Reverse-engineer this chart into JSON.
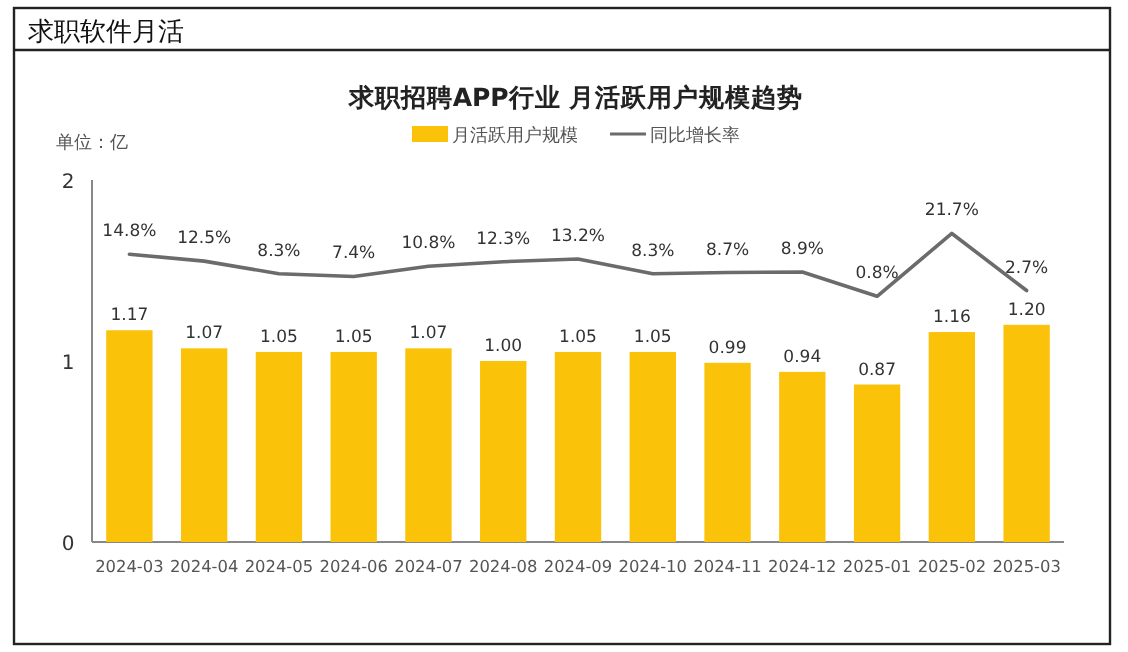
{
  "chart_data": {
    "type": "bar",
    "title": "求职招聘APP行业 月活跃用户规模趋势",
    "annotations": [
      "求职软件月活",
      "单位：亿"
    ],
    "categories": [
      "2024-03",
      "2024-04",
      "2024-05",
      "2024-06",
      "2024-07",
      "2024-08",
      "2024-09",
      "2024-10",
      "2024-11",
      "2024-12",
      "2025-01",
      "2025-02",
      "2025-03"
    ],
    "series": [
      {
        "name": "月活跃用户规模",
        "color": "#fbc20a",
        "values": [
          1.17,
          1.07,
          1.05,
          1.05,
          1.07,
          1.0,
          1.05,
          1.05,
          0.99,
          0.94,
          0.87,
          1.16,
          1.2
        ],
        "value_labels": [
          "1.17",
          "1.07",
          "1.05",
          "1.05",
          "1.07",
          "1.00",
          "1.05",
          "1.05",
          "0.99",
          "0.94",
          "0.87",
          "1.16",
          "1.20"
        ]
      },
      {
        "name": "同比增长率",
        "type": "line",
        "axis": "y2",
        "color": "#6b6b6b",
        "values": [
          14.8,
          12.5,
          8.3,
          7.4,
          10.8,
          12.3,
          13.2,
          8.3,
          8.7,
          8.9,
          0.8,
          21.7,
          2.7
        ],
        "value_labels": [
          "14.8%",
          "12.5%",
          "8.3%",
          "7.4%",
          "10.8%",
          "12.3%",
          "13.2%",
          "8.3%",
          "8.7%",
          "8.9%",
          "0.8%",
          "21.7%",
          "2.7%"
        ]
      }
    ],
    "ylim": [
      0,
      2
    ],
    "yticks": [
      0,
      1,
      2
    ],
    "y2lim": [
      -81,
      39.5
    ],
    "legend": "top",
    "grid": false,
    "marker": "none",
    "line_style": "solid"
  }
}
